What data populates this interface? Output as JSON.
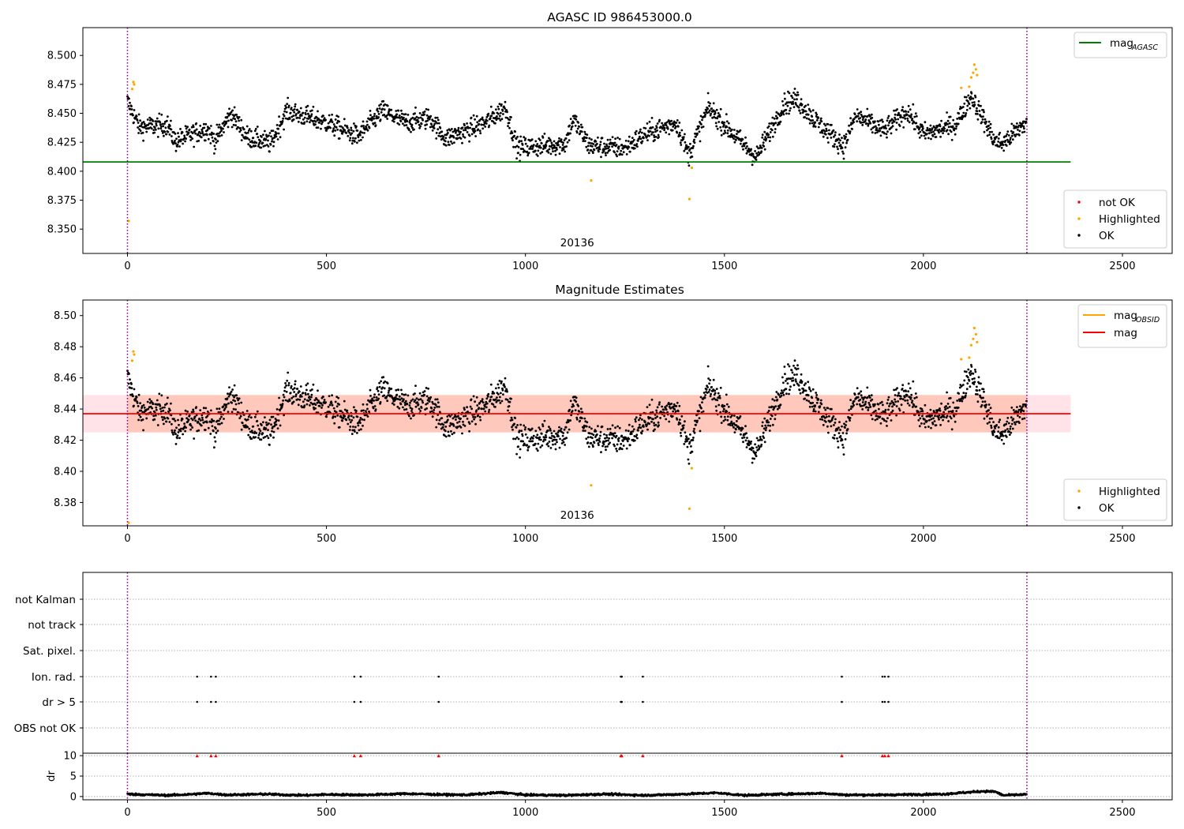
{
  "chart_data": [
    {
      "type": "scatter",
      "title": "AGASC ID 986453000.0",
      "xlim": [
        -112,
        2625
      ],
      "ylim": [
        8.329,
        8.524
      ],
      "x_ticks": [
        0,
        500,
        1000,
        1500,
        2000,
        2500
      ],
      "y_ticks": [
        8.35,
        8.375,
        8.4,
        8.425,
        8.45,
        8.475,
        8.5
      ],
      "y_tick_format": 3,
      "vlines": [
        0,
        2260
      ],
      "obsid_label": {
        "text": "20136",
        "x": 1130
      },
      "reference_line": {
        "name": "mag$_{AGASC}$",
        "label_main": "mag",
        "label_sub": "AGASC",
        "y": 8.408,
        "x_range": [
          -112,
          2370
        ],
        "color": "#008000"
      },
      "band": null,
      "legend_lines": [
        {
          "label_main": "mag",
          "label_sub": "AGASC",
          "color": "#008000"
        }
      ],
      "legend_points": [
        {
          "label": "not OK",
          "color": "#ff0000"
        },
        {
          "label": "Highlighted",
          "color": "#ffa500"
        },
        {
          "label": "OK",
          "color": "#000000"
        }
      ],
      "series": [
        {
          "name": "OK",
          "color": "#000000",
          "n": 2260,
          "y_trend": [
            [
              0,
              8.46
            ],
            [
              30,
              8.438
            ],
            [
              100,
              8.44
            ],
            [
              120,
              8.426
            ],
            [
              200,
              8.437
            ],
            [
              220,
              8.426
            ],
            [
              260,
              8.45
            ],
            [
              300,
              8.43
            ],
            [
              360,
              8.424
            ],
            [
              400,
              8.452
            ],
            [
              500,
              8.442
            ],
            [
              580,
              8.43
            ],
            [
              640,
              8.452
            ],
            [
              700,
              8.442
            ],
            [
              760,
              8.446
            ],
            [
              800,
              8.428
            ],
            [
              900,
              8.442
            ],
            [
              950,
              8.455
            ],
            [
              980,
              8.42
            ],
            [
              1100,
              8.424
            ],
            [
              1120,
              8.445
            ],
            [
              1160,
              8.422
            ],
            [
              1250,
              8.42
            ],
            [
              1300,
              8.432
            ],
            [
              1380,
              8.442
            ],
            [
              1410,
              8.414
            ],
            [
              1460,
              8.455
            ],
            [
              1500,
              8.44
            ],
            [
              1580,
              8.412
            ],
            [
              1650,
              8.458
            ],
            [
              1680,
              8.462
            ],
            [
              1740,
              8.44
            ],
            [
              1800,
              8.422
            ],
            [
              1830,
              8.448
            ],
            [
              1900,
              8.435
            ],
            [
              1960,
              8.452
            ],
            [
              2000,
              8.432
            ],
            [
              2080,
              8.44
            ],
            [
              2120,
              8.465
            ],
            [
              2180,
              8.426
            ],
            [
              2200,
              8.424
            ],
            [
              2260,
              8.443
            ]
          ]
        },
        {
          "name": "Highlighted",
          "color": "#ffa500",
          "points": [
            [
              3,
              8.357
            ],
            [
              12,
              8.471
            ],
            [
              15,
              8.477
            ],
            [
              17,
              8.475
            ],
            [
              1165,
              8.392
            ],
            [
              1412,
              8.376
            ],
            [
              1418,
              8.403
            ],
            [
              2095,
              8.472
            ],
            [
              2115,
              8.473
            ],
            [
              2120,
              8.481
            ],
            [
              2125,
              8.485
            ],
            [
              2128,
              8.492
            ],
            [
              2132,
              8.488
            ],
            [
              2135,
              8.483
            ]
          ]
        }
      ]
    },
    {
      "type": "scatter",
      "title": "Magnitude Estimates",
      "xlim": [
        -112,
        2625
      ],
      "ylim": [
        8.365,
        8.51
      ],
      "x_ticks": [
        0,
        500,
        1000,
        1500,
        2000,
        2500
      ],
      "y_ticks": [
        8.38,
        8.4,
        8.42,
        8.44,
        8.46,
        8.48,
        8.5
      ],
      "y_tick_format": 2,
      "vlines": [
        0,
        2260
      ],
      "obsid_label": {
        "text": "20136",
        "x": 1130
      },
      "reference_line": {
        "name": "mag",
        "y": 8.437,
        "x_range": [
          -112,
          2370
        ],
        "color": "#ff0000"
      },
      "band": {
        "y_range": [
          8.425,
          8.449
        ],
        "x_range": [
          -112,
          2370
        ]
      },
      "legend_lines": [
        {
          "label_main": "mag",
          "label_sub": "OBSID",
          "color": "#ffa500"
        },
        {
          "label_main": "mag",
          "label_sub": "",
          "color": "#ff0000"
        }
      ],
      "legend_points": [
        {
          "label": "Highlighted",
          "color": "#ffa500"
        },
        {
          "label": "OK",
          "color": "#000000"
        }
      ],
      "series": [
        {
          "name": "OK",
          "color": "#000000",
          "n": 2260
        },
        {
          "name": "Highlighted",
          "color": "#ffa500",
          "points": [
            [
              3,
              8.367
            ],
            [
              12,
              8.471
            ],
            [
              15,
              8.477
            ],
            [
              17,
              8.475
            ],
            [
              1165,
              8.391
            ],
            [
              1412,
              8.376
            ],
            [
              1418,
              8.402
            ],
            [
              2095,
              8.472
            ],
            [
              2115,
              8.473
            ],
            [
              2120,
              8.481
            ],
            [
              2125,
              8.485
            ],
            [
              2128,
              8.492
            ],
            [
              2132,
              8.488
            ],
            [
              2135,
              8.483
            ]
          ]
        }
      ]
    },
    {
      "type": "scatter",
      "title": "",
      "xlim": [
        -112,
        2625
      ],
      "x_ticks": [
        0,
        500,
        1000,
        1500,
        2000,
        2500
      ],
      "vlines": [
        0,
        2260
      ],
      "flag_labels": [
        "not Kalman",
        "not track",
        "Sat. pixel.",
        "Ion. rad.",
        "dr > 5",
        "OBS not OK"
      ],
      "flags": {
        "Ion. rad.": [
          175,
          210,
          222,
          570,
          586,
          782,
          1240,
          1242,
          1295,
          1795,
          1897,
          1903,
          1912
        ],
        "dr > 5": [
          175,
          210,
          222,
          570,
          586,
          782,
          1240,
          1242,
          1295,
          1795,
          1897,
          1903,
          1912
        ]
      }
    },
    {
      "type": "scatter",
      "title": "",
      "ylabel": "dr",
      "xlim": [
        -112,
        2625
      ],
      "ylim": [
        -0.8,
        10.6
      ],
      "x_ticks": [
        0,
        500,
        1000,
        1500,
        2000,
        2500
      ],
      "y_ticks": [
        0,
        5,
        10
      ],
      "vlines": [
        0,
        2260
      ],
      "clipped_marker_x": [
        175,
        210,
        222,
        570,
        586,
        782,
        1240,
        1242,
        1295,
        1795,
        1897,
        1903,
        1912
      ],
      "series": [
        {
          "name": "dr",
          "color": "#000000",
          "n": 2260,
          "y_trend": [
            [
              0,
              0.6
            ],
            [
              100,
              0.3
            ],
            [
              150,
              0.5
            ],
            [
              200,
              0.8
            ],
            [
              250,
              0.4
            ],
            [
              300,
              0.5
            ],
            [
              350,
              0.6
            ],
            [
              400,
              0.4
            ],
            [
              450,
              0.3
            ],
            [
              500,
              0.5
            ],
            [
              600,
              0.4
            ],
            [
              700,
              0.7
            ],
            [
              780,
              0.5
            ],
            [
              850,
              0.4
            ],
            [
              940,
              1.0
            ],
            [
              1000,
              0.4
            ],
            [
              1100,
              0.3
            ],
            [
              1200,
              0.6
            ],
            [
              1300,
              0.3
            ],
            [
              1400,
              0.6
            ],
            [
              1480,
              0.9
            ],
            [
              1550,
              0.3
            ],
            [
              1650,
              0.6
            ],
            [
              1750,
              0.8
            ],
            [
              1800,
              0.4
            ],
            [
              1900,
              0.4
            ],
            [
              2050,
              0.6
            ],
            [
              2150,
              1.3
            ],
            [
              2180,
              1.2
            ],
            [
              2200,
              0.3
            ],
            [
              2260,
              0.5
            ]
          ]
        }
      ]
    }
  ]
}
